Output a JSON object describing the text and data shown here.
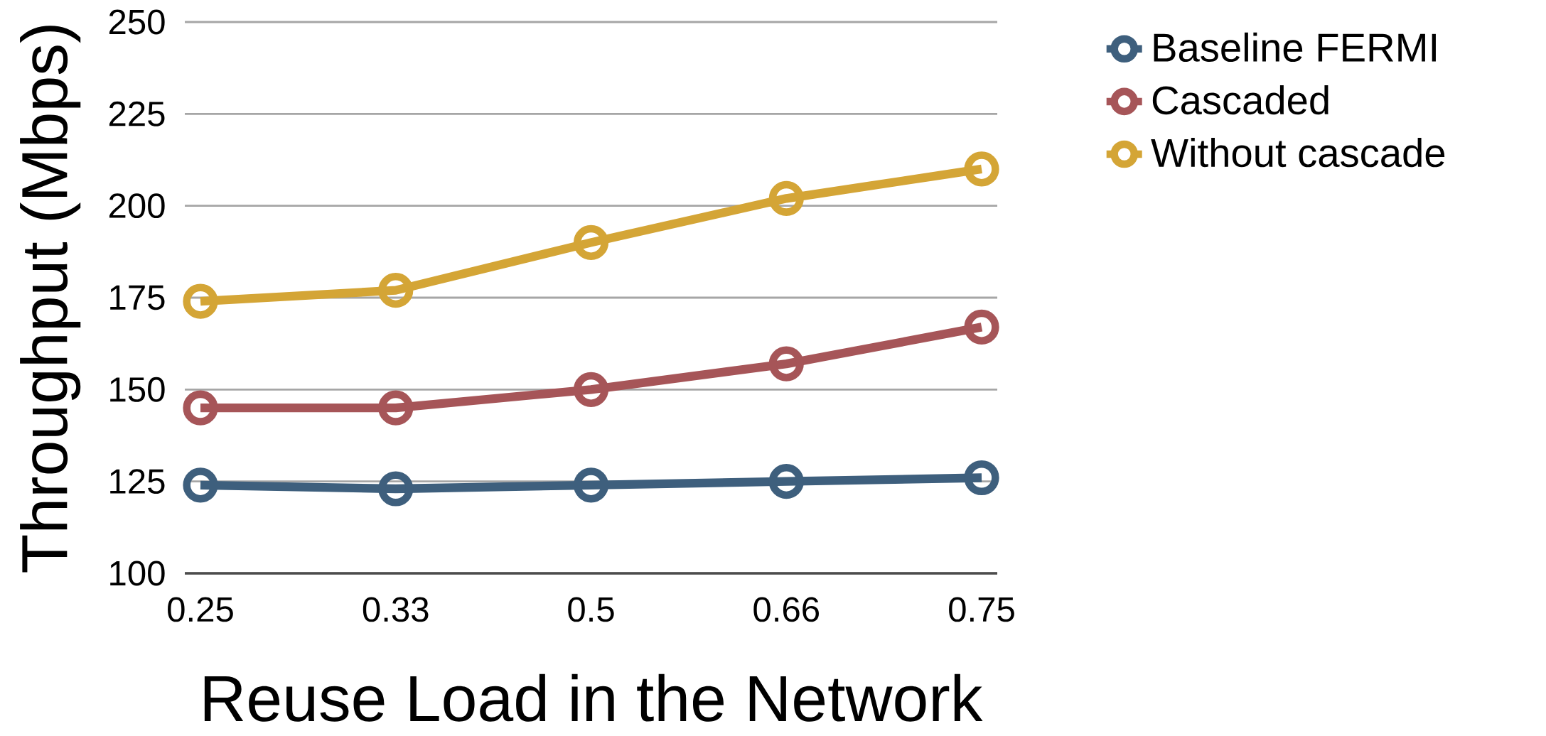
{
  "chart_data": {
    "type": "line",
    "xlabel": "Reuse Load in the Network",
    "ylabel": "Throughput (Mbps)",
    "categories": [
      "0.25",
      "0.33",
      "0.5",
      "0.66",
      "0.75"
    ],
    "series": [
      {
        "name": "Baseline FERMI",
        "color": "#3e5f7d",
        "values": [
          124,
          123,
          124,
          125,
          126
        ]
      },
      {
        "name": "Cascaded",
        "color": "#a65558",
        "values": [
          145,
          145,
          150,
          157,
          167
        ]
      },
      {
        "name": "Without cascade",
        "color": "#d4a536",
        "values": [
          174,
          177,
          190,
          202,
          210
        ]
      }
    ],
    "ylim": [
      100,
      250
    ],
    "yticks": [
      100,
      125,
      150,
      175,
      200,
      225,
      250
    ],
    "grid": "y",
    "legend": "top right",
    "marker": "circle",
    "line_style": "solid"
  }
}
